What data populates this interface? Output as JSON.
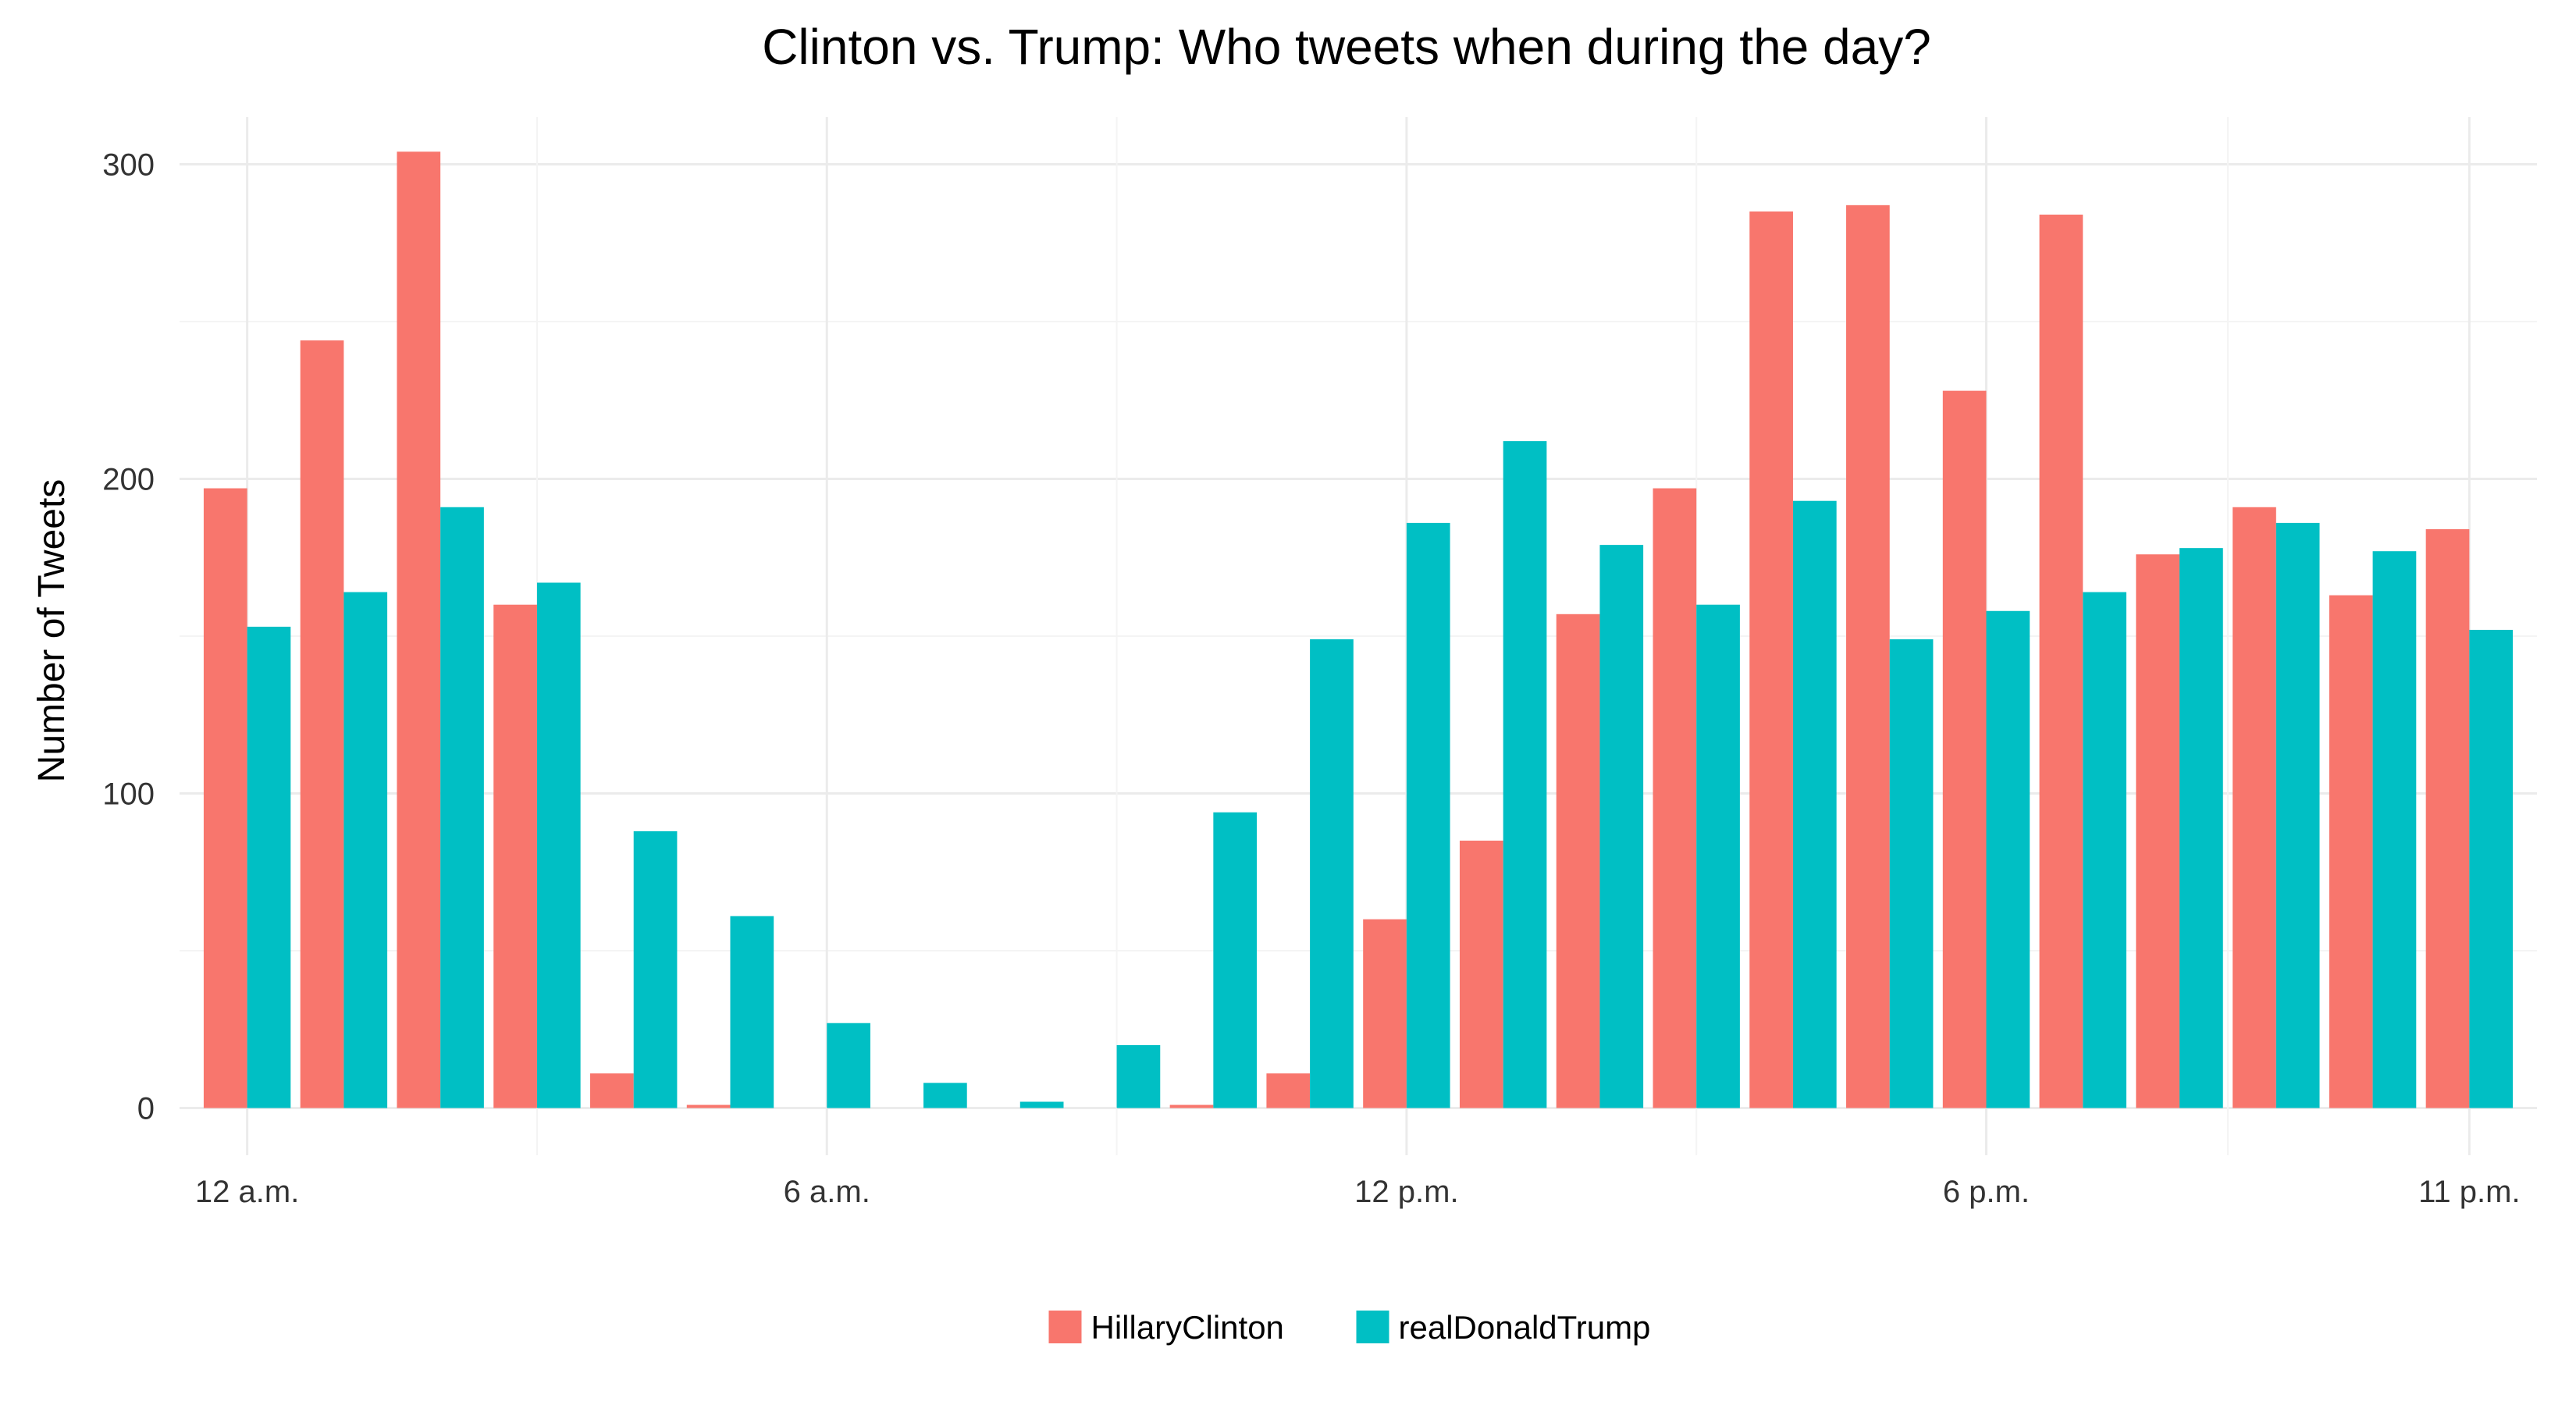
{
  "chart_data": {
    "type": "bar",
    "title": "Clinton vs. Trump: Who tweets when during the day?",
    "xlabel": "",
    "ylabel": "Number of Tweets",
    "ylim": [
      -15,
      315
    ],
    "yticks": [
      0,
      100,
      200,
      300
    ],
    "grid": true,
    "legend_position": "bottom",
    "hours": [
      0,
      1,
      2,
      3,
      4,
      5,
      6,
      7,
      8,
      9,
      10,
      11,
      12,
      13,
      14,
      15,
      16,
      17,
      18,
      19,
      20,
      21,
      22,
      23
    ],
    "xticks": [
      {
        "hour": 0,
        "label": "12 a.m."
      },
      {
        "hour": 6,
        "label": "6 a.m."
      },
      {
        "hour": 12,
        "label": "12 p.m."
      },
      {
        "hour": 18,
        "label": "6 p.m."
      },
      {
        "hour": 23,
        "label": "11 p.m."
      }
    ],
    "series": [
      {
        "name": "HillaryClinton",
        "color": "#F8766D",
        "values": [
          197,
          244,
          304,
          160,
          11,
          1,
          0,
          0,
          0,
          0,
          1,
          11,
          60,
          85,
          157,
          197,
          285,
          287,
          228,
          284,
          176,
          191,
          163,
          184
        ]
      },
      {
        "name": "realDonaldTrump",
        "color": "#00BFC4",
        "values": [
          153,
          164,
          191,
          167,
          88,
          61,
          27,
          8,
          2,
          20,
          94,
          149,
          186,
          212,
          179,
          160,
          193,
          149,
          158,
          164,
          178,
          186,
          177,
          152
        ]
      }
    ]
  }
}
